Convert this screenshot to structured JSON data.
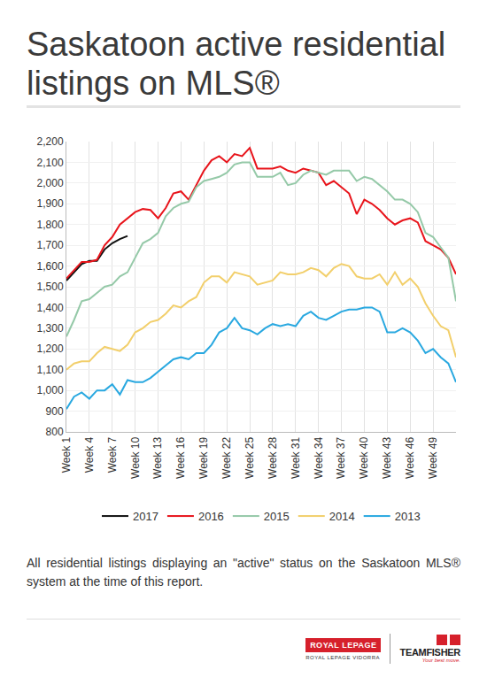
{
  "chart_data": {
    "type": "line",
    "title": "Saskatoon active residential listings on MLS®",
    "x": [
      1,
      2,
      3,
      4,
      5,
      6,
      7,
      8,
      9,
      10,
      11,
      12,
      13,
      14,
      15,
      16,
      17,
      18,
      19,
      20,
      21,
      22,
      23,
      24,
      25,
      26,
      27,
      28,
      29,
      30,
      31,
      32,
      33,
      34,
      35,
      36,
      37,
      38,
      39,
      40,
      41,
      42,
      43,
      44,
      45,
      46,
      47,
      48,
      49,
      50,
      51,
      52
    ],
    "xlim": [
      1,
      52
    ],
    "xticks": [
      {
        "value": 1,
        "label": "Week 1"
      },
      {
        "value": 4,
        "label": "Week 4"
      },
      {
        "value": 7,
        "label": "Week 7"
      },
      {
        "value": 10,
        "label": "Week 10"
      },
      {
        "value": 13,
        "label": "Week 13"
      },
      {
        "value": 16,
        "label": "Week 16"
      },
      {
        "value": 19,
        "label": "Week 19"
      },
      {
        "value": 22,
        "label": "Week 22"
      },
      {
        "value": 25,
        "label": "Week 25"
      },
      {
        "value": 28,
        "label": "Week 28"
      },
      {
        "value": 31,
        "label": "Week 31"
      },
      {
        "value": 34,
        "label": "Week 34"
      },
      {
        "value": 37,
        "label": "Week 37"
      },
      {
        "value": 40,
        "label": "Week 40"
      },
      {
        "value": 43,
        "label": "Week 43"
      },
      {
        "value": 46,
        "label": "Week 46"
      },
      {
        "value": 49,
        "label": "Week 49"
      }
    ],
    "ylim": [
      800,
      2200
    ],
    "yticks": [
      {
        "value": 800,
        "label": "800"
      },
      {
        "value": 900,
        "label": "900"
      },
      {
        "value": 1000,
        "label": "1,000"
      },
      {
        "value": 1100,
        "label": "1,100"
      },
      {
        "value": 1200,
        "label": "1,200"
      },
      {
        "value": 1300,
        "label": "1,300"
      },
      {
        "value": 1400,
        "label": "1,400"
      },
      {
        "value": 1500,
        "label": "1,500"
      },
      {
        "value": 1600,
        "label": "1,600"
      },
      {
        "value": 1700,
        "label": "1,700"
      },
      {
        "value": 1800,
        "label": "1,800"
      },
      {
        "value": 1900,
        "label": "1,900"
      },
      {
        "value": 2000,
        "label": "2,000"
      },
      {
        "value": 2100,
        "label": "2,100"
      },
      {
        "value": 2200,
        "label": "2,200"
      }
    ],
    "grid": true,
    "legend": "bottom",
    "series": [
      {
        "name": "2017",
        "color": "#111111",
        "values": [
          1530,
          1570,
          1610,
          1625,
          1625,
          1680,
          1710,
          1730,
          1745,
          null,
          null,
          null,
          null,
          null,
          null,
          null,
          null,
          null,
          null,
          null,
          null,
          null,
          null,
          null,
          null,
          null,
          null,
          null,
          null,
          null,
          null,
          null,
          null,
          null,
          null,
          null,
          null,
          null,
          null,
          null,
          null,
          null,
          null,
          null,
          null,
          null,
          null,
          null,
          null,
          null,
          null,
          null
        ]
      },
      {
        "name": "2016",
        "color": "#e8141b",
        "values": [
          1540,
          1580,
          1620,
          1620,
          1630,
          1700,
          1740,
          1800,
          1830,
          1860,
          1875,
          1870,
          1830,
          1880,
          1950,
          1960,
          1920,
          1990,
          2060,
          2110,
          2130,
          2100,
          2140,
          2130,
          2170,
          2070,
          2070,
          2070,
          2080,
          2060,
          2050,
          2070,
          2060,
          2050,
          1990,
          2010,
          1980,
          1950,
          1850,
          1920,
          1900,
          1870,
          1830,
          1800,
          1820,
          1830,
          1810,
          1720,
          1700,
          1680,
          1640,
          1560
        ]
      },
      {
        "name": "2015",
        "color": "#95c9a8",
        "values": [
          1260,
          1340,
          1430,
          1440,
          1470,
          1500,
          1510,
          1550,
          1570,
          1640,
          1710,
          1730,
          1760,
          1840,
          1880,
          1900,
          1910,
          1980,
          2010,
          2020,
          2030,
          2050,
          2090,
          2100,
          2100,
          2030,
          2030,
          2030,
          2050,
          1990,
          2000,
          2040,
          2060,
          2050,
          2040,
          2060,
          2060,
          2060,
          2010,
          2030,
          2020,
          1990,
          1960,
          1920,
          1920,
          1900,
          1860,
          1760,
          1740,
          1690,
          1640,
          1430
        ]
      },
      {
        "name": "2014",
        "color": "#f2cf6b",
        "values": [
          1100,
          1130,
          1140,
          1140,
          1180,
          1210,
          1200,
          1190,
          1220,
          1280,
          1300,
          1330,
          1340,
          1370,
          1410,
          1400,
          1430,
          1450,
          1520,
          1550,
          1550,
          1520,
          1570,
          1560,
          1550,
          1510,
          1520,
          1530,
          1570,
          1560,
          1560,
          1570,
          1590,
          1580,
          1550,
          1590,
          1610,
          1600,
          1550,
          1540,
          1540,
          1560,
          1510,
          1570,
          1510,
          1540,
          1500,
          1420,
          1360,
          1310,
          1290,
          1160
        ]
      },
      {
        "name": "2013",
        "color": "#29a8e0",
        "values": [
          910,
          970,
          990,
          960,
          1000,
          1000,
          1030,
          980,
          1050,
          1040,
          1040,
          1060,
          1090,
          1120,
          1150,
          1160,
          1150,
          1180,
          1180,
          1220,
          1280,
          1300,
          1350,
          1300,
          1290,
          1270,
          1300,
          1320,
          1310,
          1320,
          1310,
          1360,
          1380,
          1350,
          1340,
          1360,
          1380,
          1390,
          1390,
          1400,
          1400,
          1380,
          1280,
          1280,
          1300,
          1280,
          1240,
          1180,
          1200,
          1160,
          1130,
          1040
        ]
      }
    ]
  },
  "note": "All residential listings displaying an \"active\" status on the Saskatoon MLS® system at the time of this report.",
  "logos": {
    "brand": "ROYAL LEPAGE",
    "office": "ROYAL LEPAGE VIDORRA",
    "team": "TEAMFISHER",
    "slogan": "Your best move."
  }
}
